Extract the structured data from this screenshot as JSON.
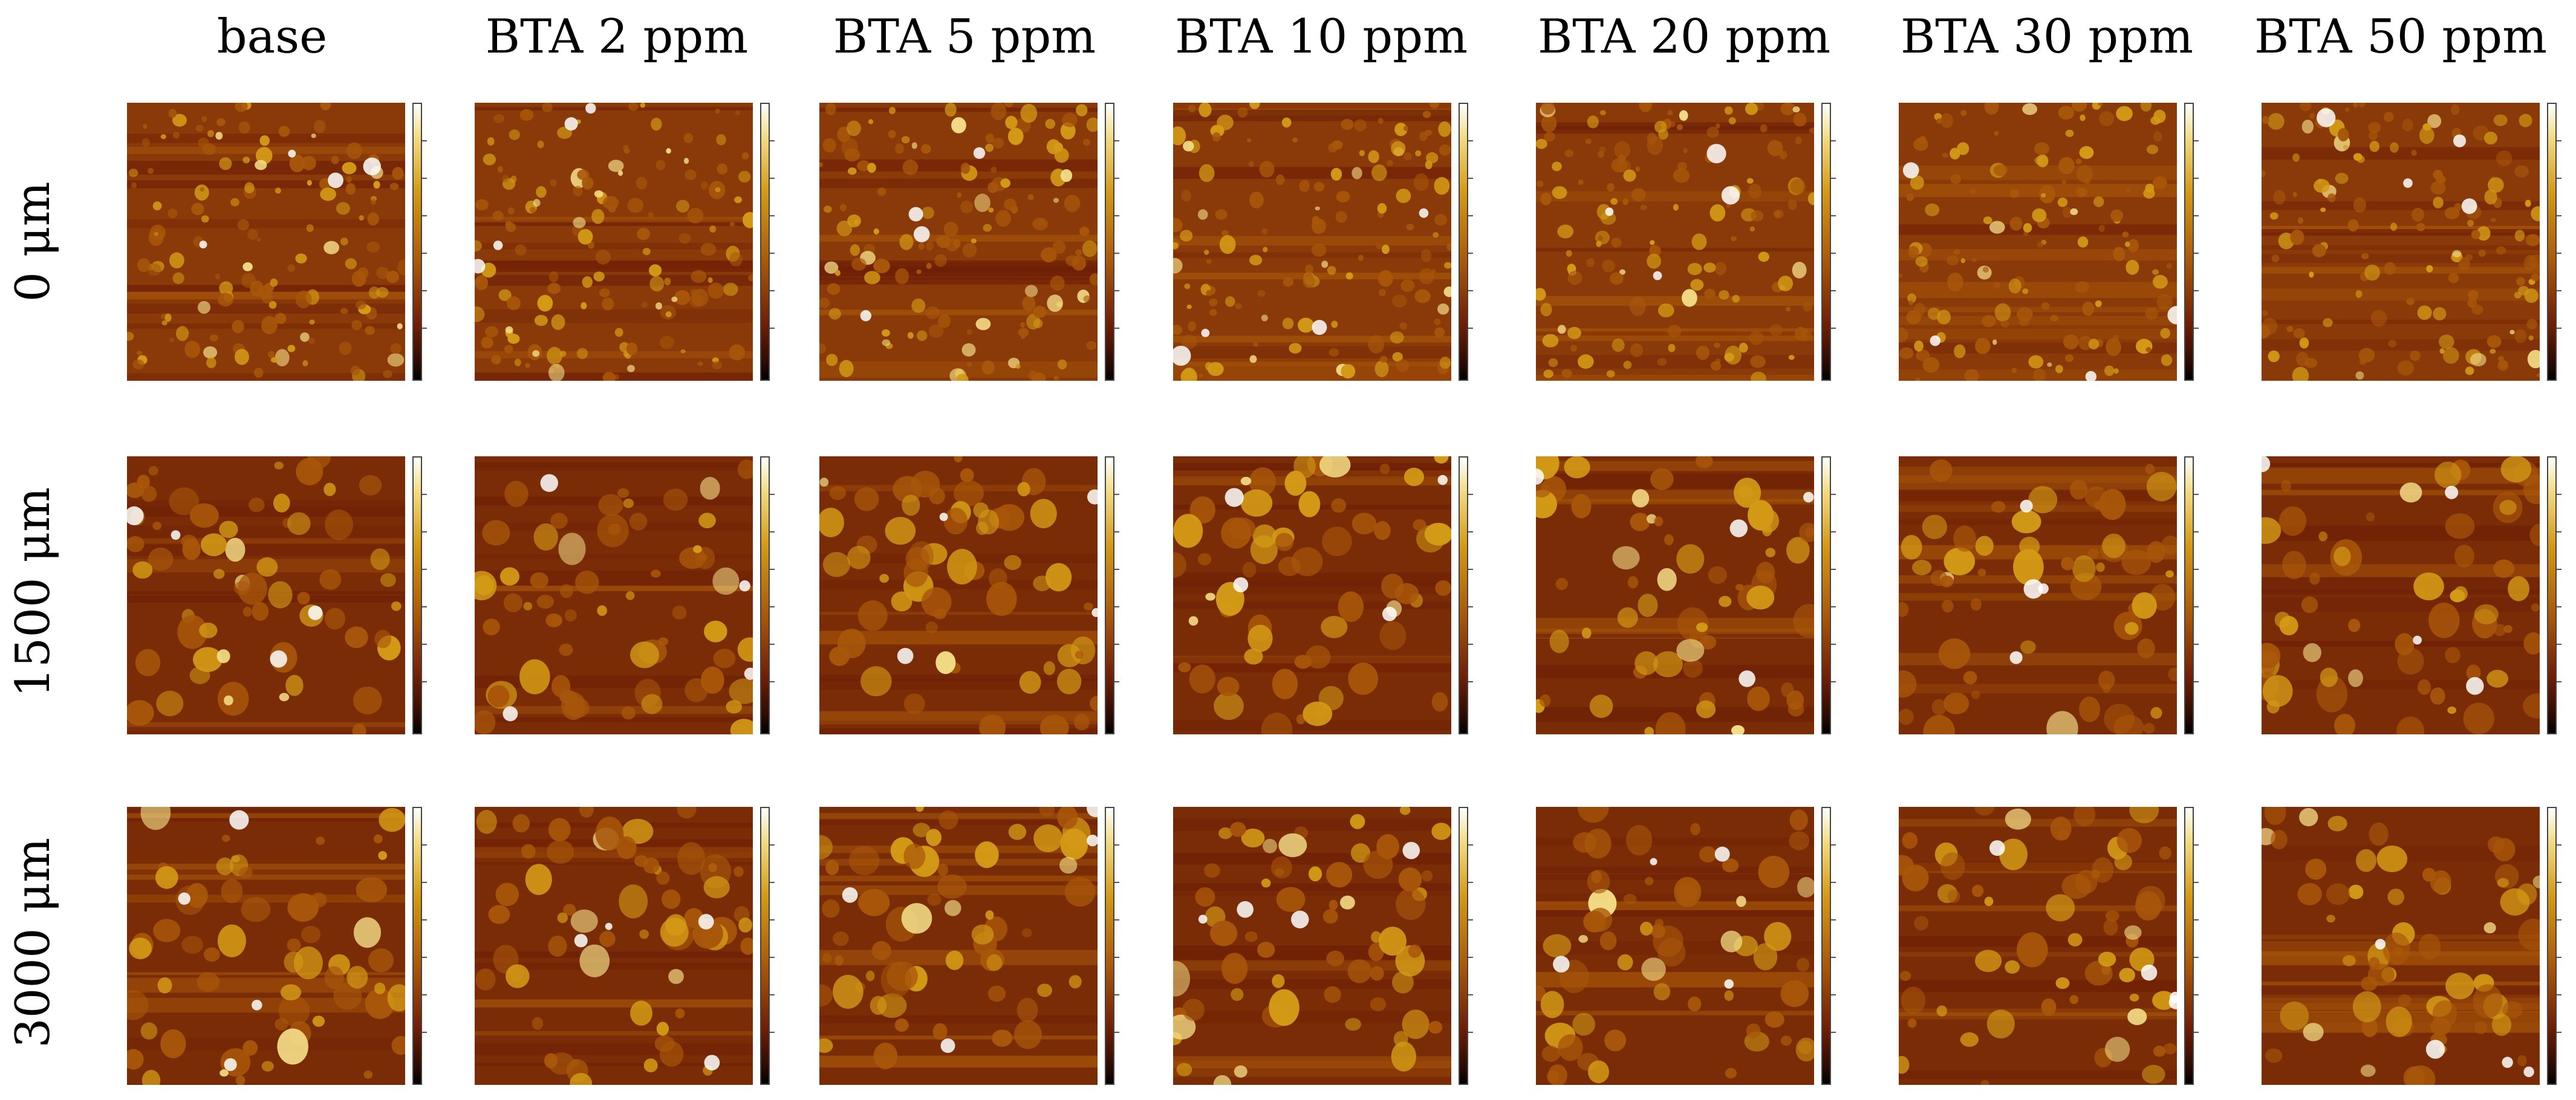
{
  "columns": [
    "base",
    "BTA 2 ppm",
    "BTA 5 ppm",
    "BTA 10 ppm",
    "BTA 20 ppm",
    "BTA 30 ppm",
    "BTA 50 ppm"
  ],
  "rows": [
    "0 μm",
    "1500 μm",
    "3000 μm"
  ],
  "colormap": [
    "#000000",
    "#2a0a02",
    "#6e1e06",
    "#a8560a",
    "#d39a16",
    "#f3dc86",
    "#ffffff"
  ]
}
